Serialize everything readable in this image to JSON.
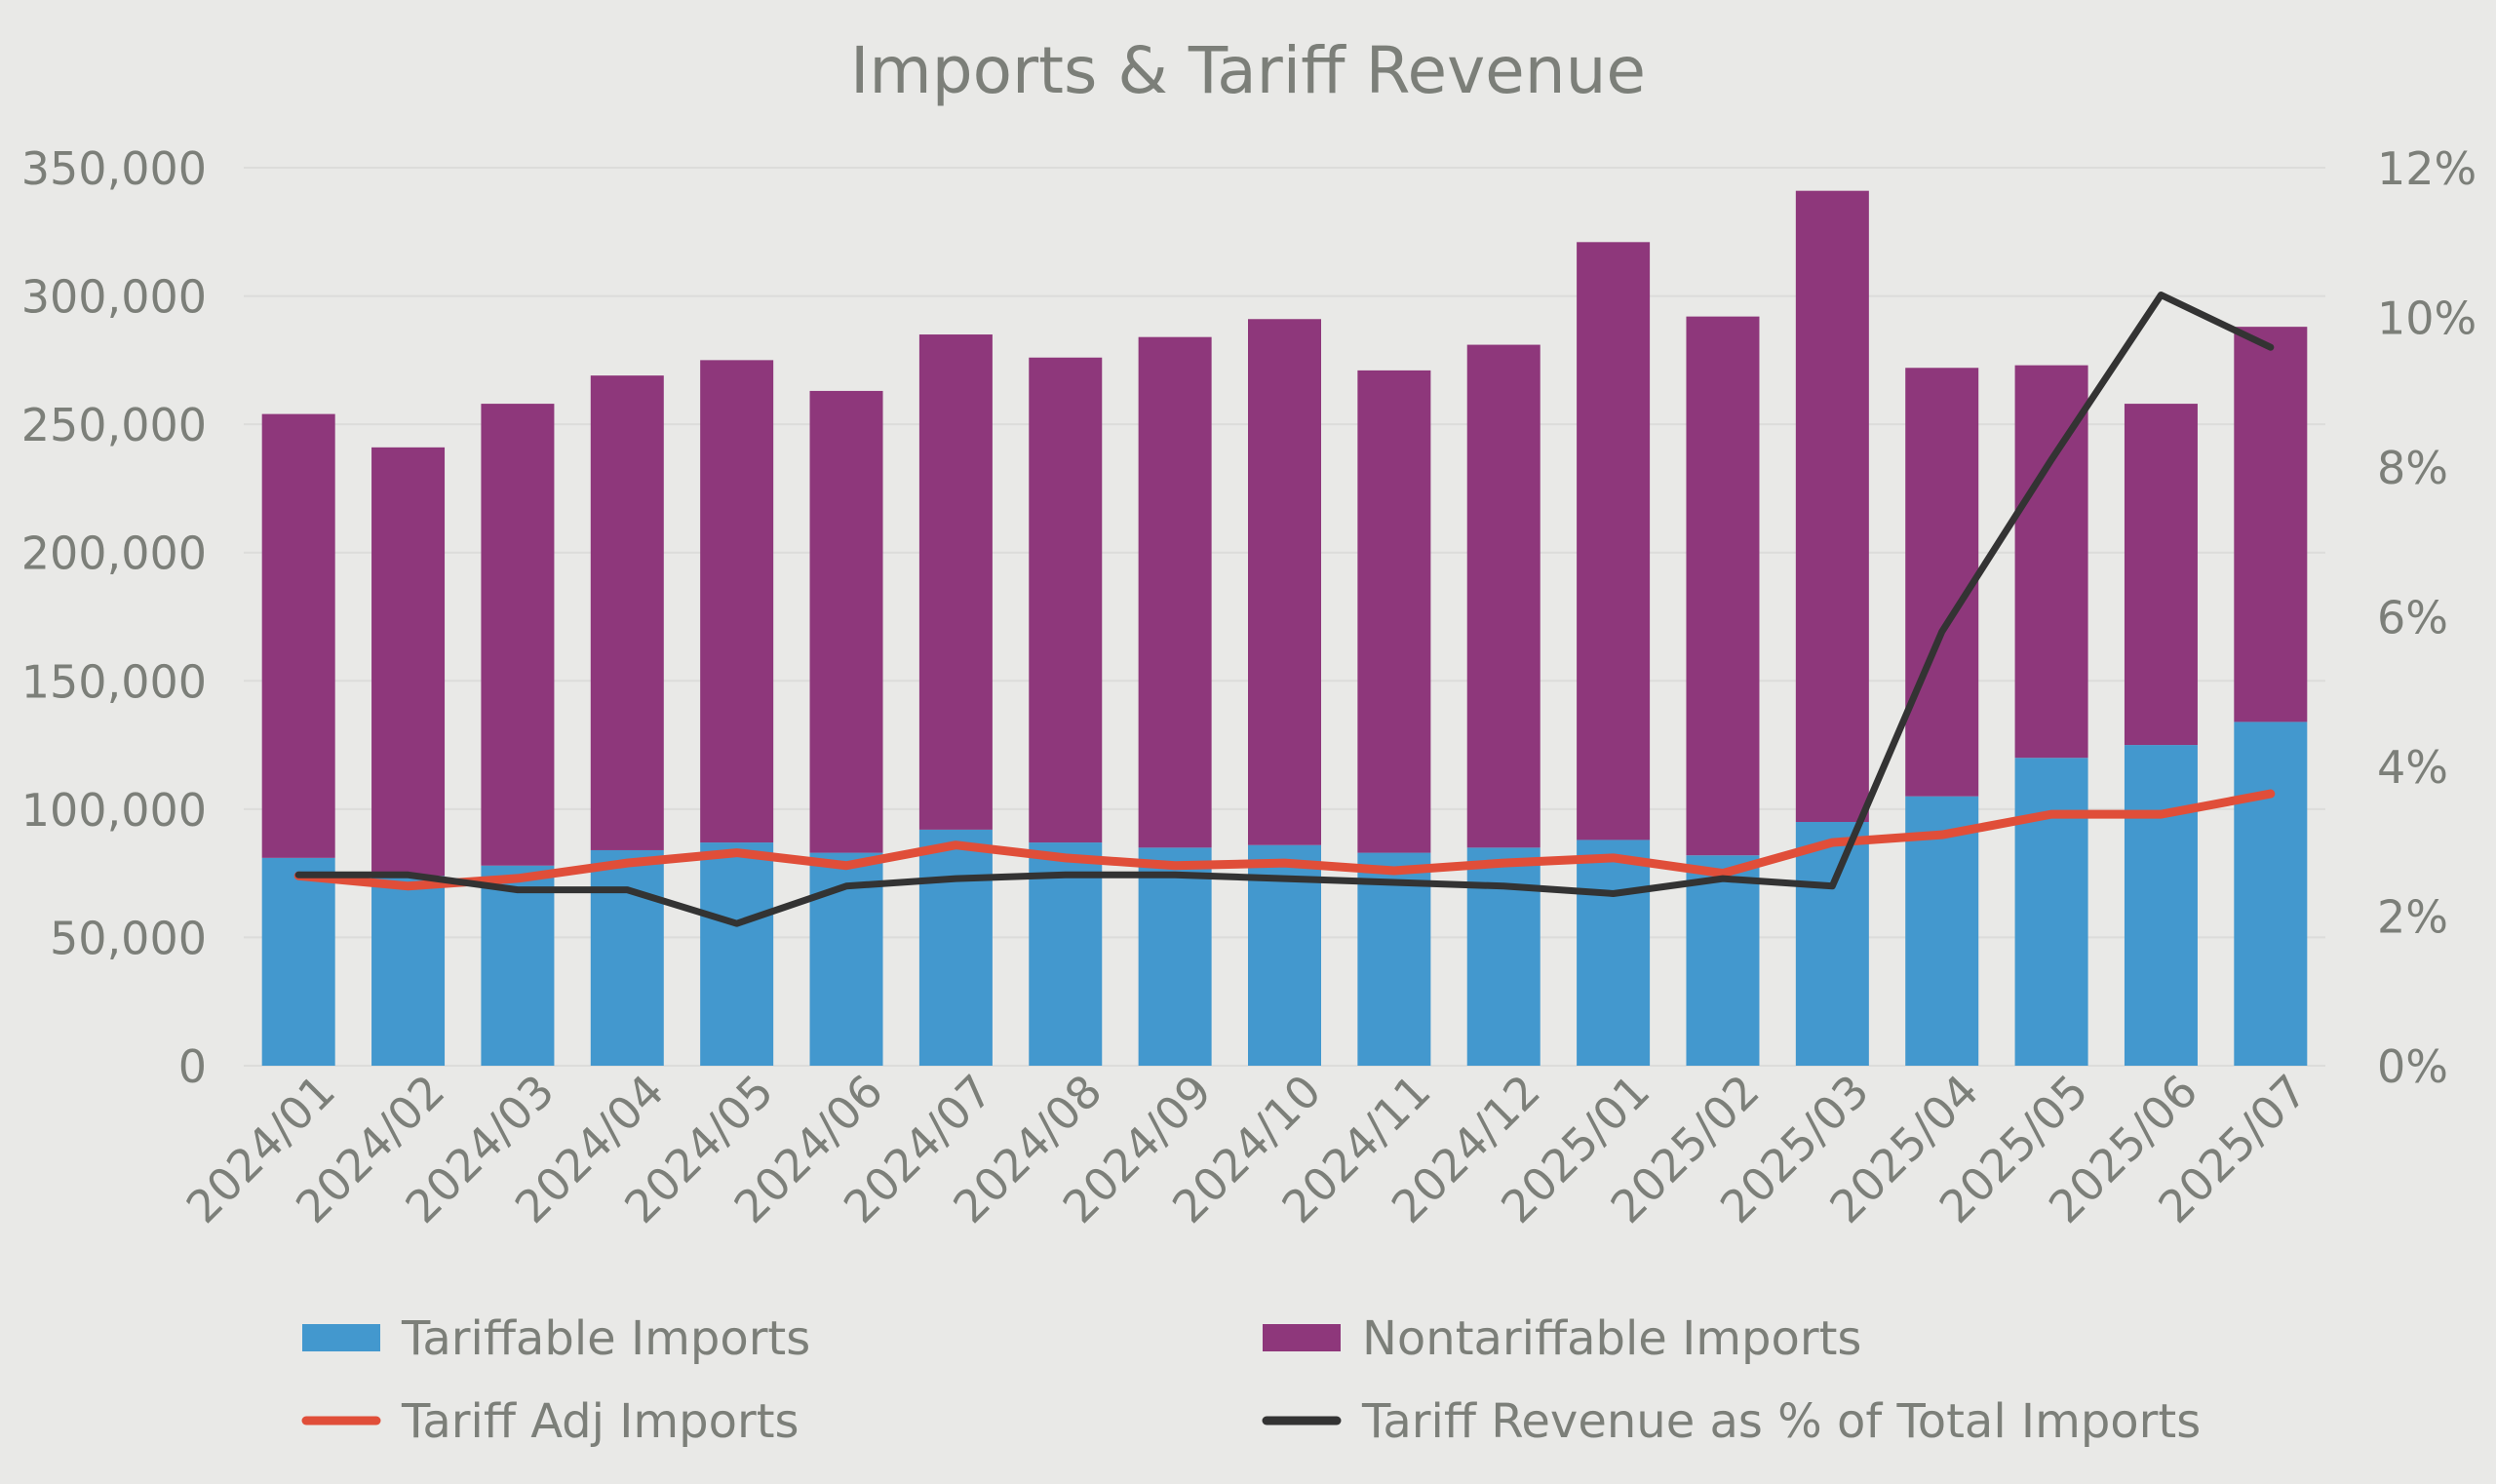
{
  "chart_data": {
    "type": "bar",
    "title": "Imports & Tariff Revenue",
    "categories": [
      "2024/01",
      "2024/02",
      "2024/03",
      "2024/04",
      "2024/05",
      "2024/06",
      "2024/07",
      "2024/08",
      "2024/09",
      "2024/10",
      "2024/11",
      "2024/12",
      "2025/01",
      "2025/02",
      "2025/03",
      "2025/04",
      "2025/05",
      "2025/06",
      "2025/07"
    ],
    "y_left": {
      "ylim": [
        0,
        350000
      ],
      "ticks": [
        0,
        50000,
        100000,
        150000,
        200000,
        250000,
        300000,
        350000
      ],
      "tick_labels": [
        "0",
        "50,000",
        "100,000",
        "150,000",
        "200,000",
        "250,000",
        "300,000",
        "350,000"
      ]
    },
    "y_right": {
      "ylim": [
        0,
        12
      ],
      "ticks": [
        0,
        2,
        4,
        6,
        8,
        10,
        12
      ],
      "tick_labels": [
        "0%",
        "2%",
        "4%",
        "6%",
        "8%",
        "10%",
        "12%"
      ]
    },
    "grid": true,
    "legend_position": "bottom",
    "series": [
      {
        "name": "Tariffable Imports",
        "kind": "stacked-bar",
        "axis": "left",
        "color": "#4398ce",
        "values": [
          81000,
          74000,
          78000,
          84000,
          87000,
          83000,
          92000,
          87000,
          85000,
          86000,
          83000,
          85000,
          88000,
          82000,
          95000,
          105000,
          120000,
          125000,
          134000
        ]
      },
      {
        "name": "Nontariffable Imports",
        "kind": "stacked-bar",
        "axis": "left",
        "color": "#8e377b",
        "values": [
          173000,
          167000,
          180000,
          185000,
          188000,
          180000,
          193000,
          189000,
          199000,
          205000,
          188000,
          196000,
          233000,
          210000,
          246000,
          167000,
          153000,
          133000,
          154000
        ]
      },
      {
        "name": "Tariff Adj Imports",
        "kind": "line",
        "axis": "left",
        "color": "#e04e39",
        "values": [
          74000,
          70000,
          73000,
          79000,
          83000,
          78000,
          86000,
          81000,
          78000,
          79000,
          76000,
          79000,
          81000,
          75000,
          87000,
          90000,
          98000,
          98000,
          106000
        ]
      },
      {
        "name": "Tariff Revenue as % of Total Imports",
        "kind": "line",
        "axis": "right",
        "color": "#333333",
        "values": [
          2.55,
          2.55,
          2.35,
          2.35,
          1.9,
          2.4,
          2.5,
          2.55,
          2.55,
          2.5,
          2.45,
          2.4,
          2.3,
          2.5,
          2.4,
          5.8,
          8.1,
          10.3,
          9.6
        ]
      }
    ]
  },
  "colors": {
    "background": "#e9e9e7",
    "text": "#7c7f79",
    "gridline": "#dcdcda"
  }
}
